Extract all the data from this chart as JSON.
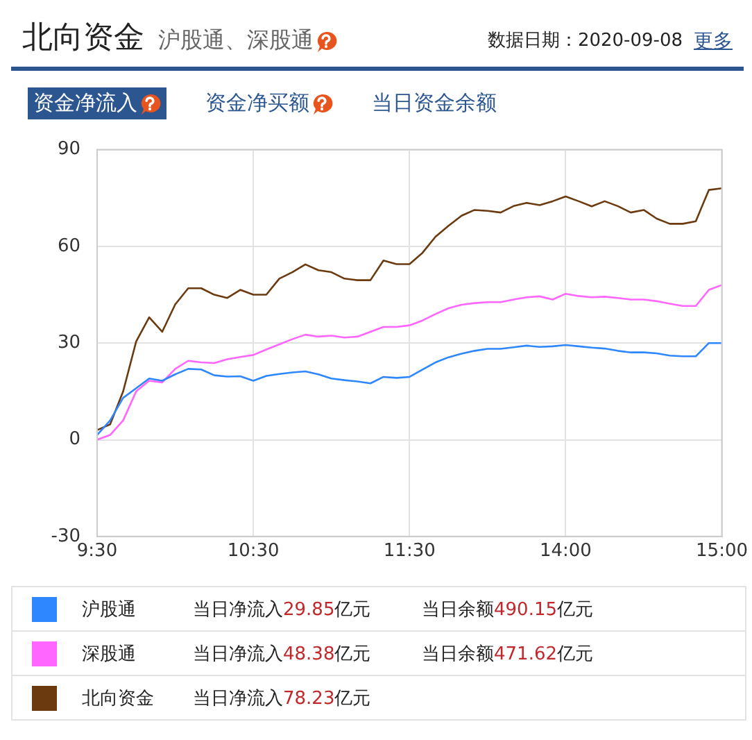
{
  "chart_data": {
    "type": "line",
    "title": "北向资金",
    "subtitle": "沪股通、深股通",
    "annotations": [
      "数据日期：2020-09-08",
      "更多",
      "资金净流入",
      "资金净买额",
      "当日资金余额",
      "当日净流入29.85亿元",
      "当日余额490.15亿元",
      "当日净流入48.38亿元",
      "当日余额471.62亿元",
      "当日净流入78.23亿元"
    ],
    "categories": [
      "9:30",
      null,
      null,
      null,
      null,
      null,
      null,
      null,
      null,
      null,
      null,
      null,
      "10:30",
      null,
      null,
      null,
      null,
      null,
      null,
      null,
      null,
      null,
      null,
      null,
      "11:30",
      null,
      null,
      null,
      null,
      null,
      null,
      null,
      null,
      null,
      null,
      null,
      "14:00",
      null,
      null,
      null,
      null,
      null,
      null,
      null,
      null,
      null,
      null,
      null,
      "15:00"
    ],
    "ylim": [
      -30,
      90
    ],
    "yticks": [
      -30,
      0,
      30,
      60,
      90
    ],
    "grid": true,
    "legend": "bottom",
    "marker": "none",
    "line_style": "solid",
    "series": [
      {
        "name": "沪股通",
        "color": "#2f87ff",
        "values": [
          1.5,
          6,
          13,
          16,
          19,
          18.3,
          20.3,
          22,
          21.8,
          20,
          19.6,
          19.7,
          18.3,
          19.8,
          20.4,
          20.9,
          21.2,
          20.3,
          19,
          18.5,
          18.1,
          17.5,
          19.5,
          19.2,
          19.5,
          21.8,
          24,
          25.6,
          26.7,
          27.6,
          28.2,
          28.2,
          28.7,
          29.2,
          28.8,
          29,
          29.4,
          29,
          28.6,
          28.3,
          27.6,
          27.1,
          27.1,
          26.8,
          26.1,
          25.9,
          25.9,
          30,
          30
        ]
      },
      {
        "name": "深股通",
        "color": "#ff66ff",
        "values": [
          0,
          1.5,
          6,
          15,
          18.3,
          17.8,
          22,
          24.5,
          24,
          23.8,
          25,
          25.7,
          26.3,
          28,
          29.6,
          31.2,
          32.6,
          32,
          32.3,
          31.7,
          32,
          33.5,
          35,
          35,
          35.5,
          37,
          39,
          40.8,
          41.9,
          42.4,
          42.7,
          42.7,
          43.5,
          44.2,
          44.5,
          43.5,
          45.3,
          44.6,
          44.2,
          44.4,
          44,
          43.5,
          43.5,
          43,
          42.2,
          41.5,
          41.5,
          46.5,
          48
        ]
      },
      {
        "name": "北向资金",
        "color": "#6b3a0f",
        "values": [
          3,
          4.8,
          15,
          30.5,
          38,
          33.5,
          42,
          47,
          47,
          45,
          44,
          46.5,
          45,
          45,
          50,
          52,
          54.4,
          52.6,
          52,
          50,
          49.5,
          49.5,
          55.6,
          54.5,
          54.5,
          58,
          63,
          66.4,
          69.5,
          71.3,
          71,
          70.5,
          72.5,
          73.5,
          72.8,
          74,
          75.5,
          74,
          72.4,
          74,
          72.5,
          70.5,
          71.3,
          68.6,
          67,
          67,
          67.8,
          77.5,
          78
        ]
      }
    ]
  }
}
